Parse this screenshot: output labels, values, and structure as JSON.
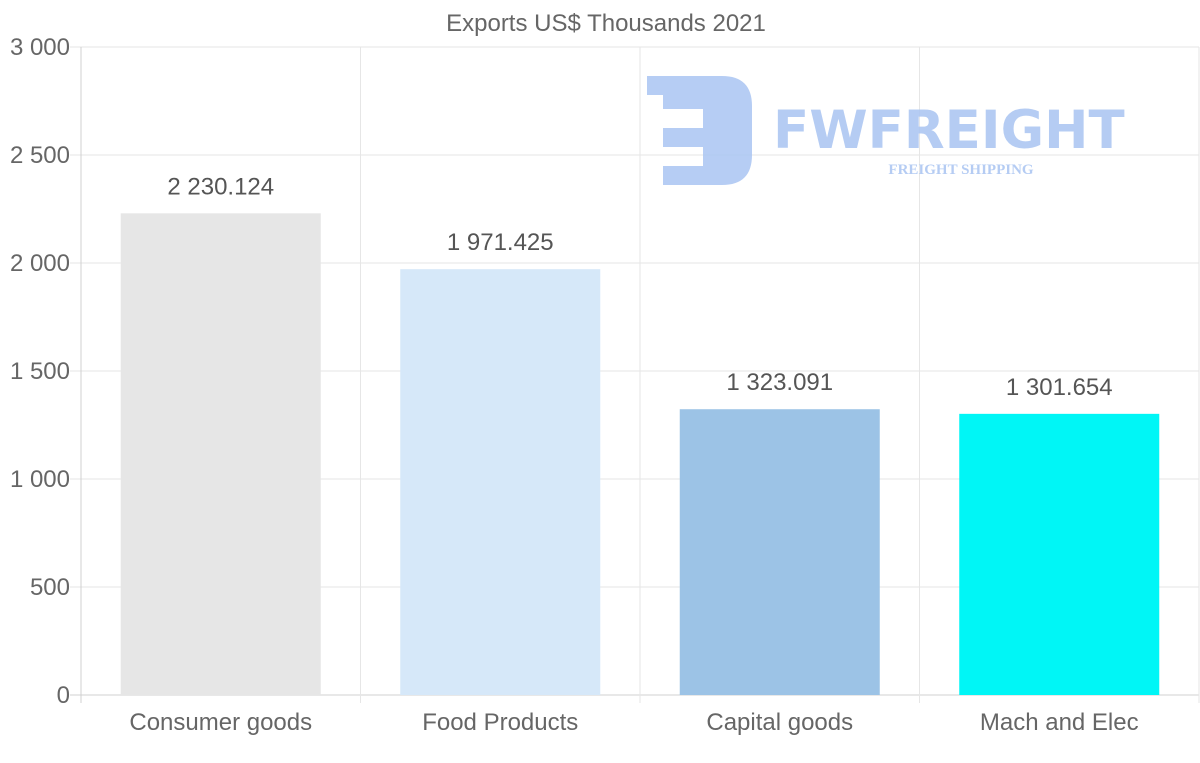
{
  "chart_data": {
    "type": "bar",
    "title": "Exports US$ Thousands 2021",
    "categories": [
      "Consumer goods",
      "Food Products",
      "Capital goods",
      "Mach and Elec"
    ],
    "values": [
      2230.124,
      1971.425,
      1323.091,
      1301.654
    ],
    "value_labels": [
      "2 230.124",
      "1 971.425",
      "1 323.091",
      "1 301.654"
    ],
    "colors": [
      "#e6e6e6",
      "#d6e8f9",
      "#9cc3e6",
      "#00f6f6"
    ],
    "ylim": [
      0,
      3000
    ],
    "yticks": [
      0,
      500,
      1000,
      1500,
      2000,
      2500,
      3000
    ],
    "ytick_labels": [
      "0",
      "500",
      "1 000",
      "1 500",
      "2 000",
      "2 500",
      "3 000"
    ],
    "grid": true,
    "xlabel": "",
    "ylabel": ""
  },
  "watermark": {
    "brand": "FWFREIGHT",
    "tagline": "FREIGHT SHIPPING",
    "color": "#a9c4f2"
  }
}
